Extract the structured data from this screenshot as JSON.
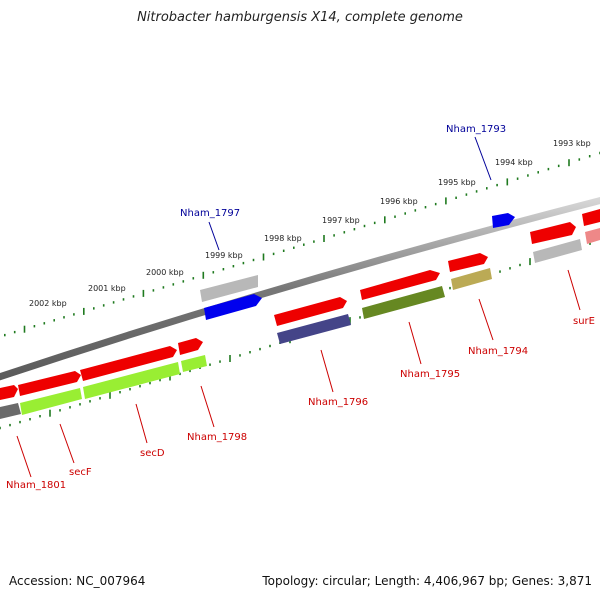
{
  "title": "Nitrobacter hamburgensis X14, complete genome",
  "footer": {
    "accession": "Accession: NC_007964",
    "summary": "Topology: circular; Length: 4,406,967 bp; Genes: 3,871"
  },
  "colors": {
    "backbone": "#8a8a8a",
    "tick": "#1f7a1f",
    "label_red": "#cc0000",
    "label_blue": "#000099",
    "gene_red": "#ee0000",
    "gene_blue": "#0000ee",
    "gene_gray": "#b8b8b8",
    "gene_dark_gray": "#6a6a6a",
    "gene_lime": "#99ee33",
    "gene_olive": "#668822",
    "gene_khaki": "#bbaa55",
    "gene_navy": "#444488",
    "gene_pink": "#ee8888"
  },
  "scale_labels": [
    "1993 kbp",
    "1994 kbp",
    "1995 kbp",
    "1996 kbp",
    "1997 kbp",
    "1998 kbp",
    "1999 kbp",
    "2000 kbp",
    "2001 kbp",
    "2002 kbp"
  ],
  "gene_labels": {
    "nham_1793": "Nham_1793",
    "nham_1797": "Nham_1797",
    "sure": "surE",
    "nham_1794": "Nham_1794",
    "nham_1795": "Nham_1795",
    "nham_1796": "Nham_1796",
    "nham_1798": "Nham_1798",
    "secd": "secD",
    "secf": "secF",
    "nham_1801": "Nham_1801"
  }
}
